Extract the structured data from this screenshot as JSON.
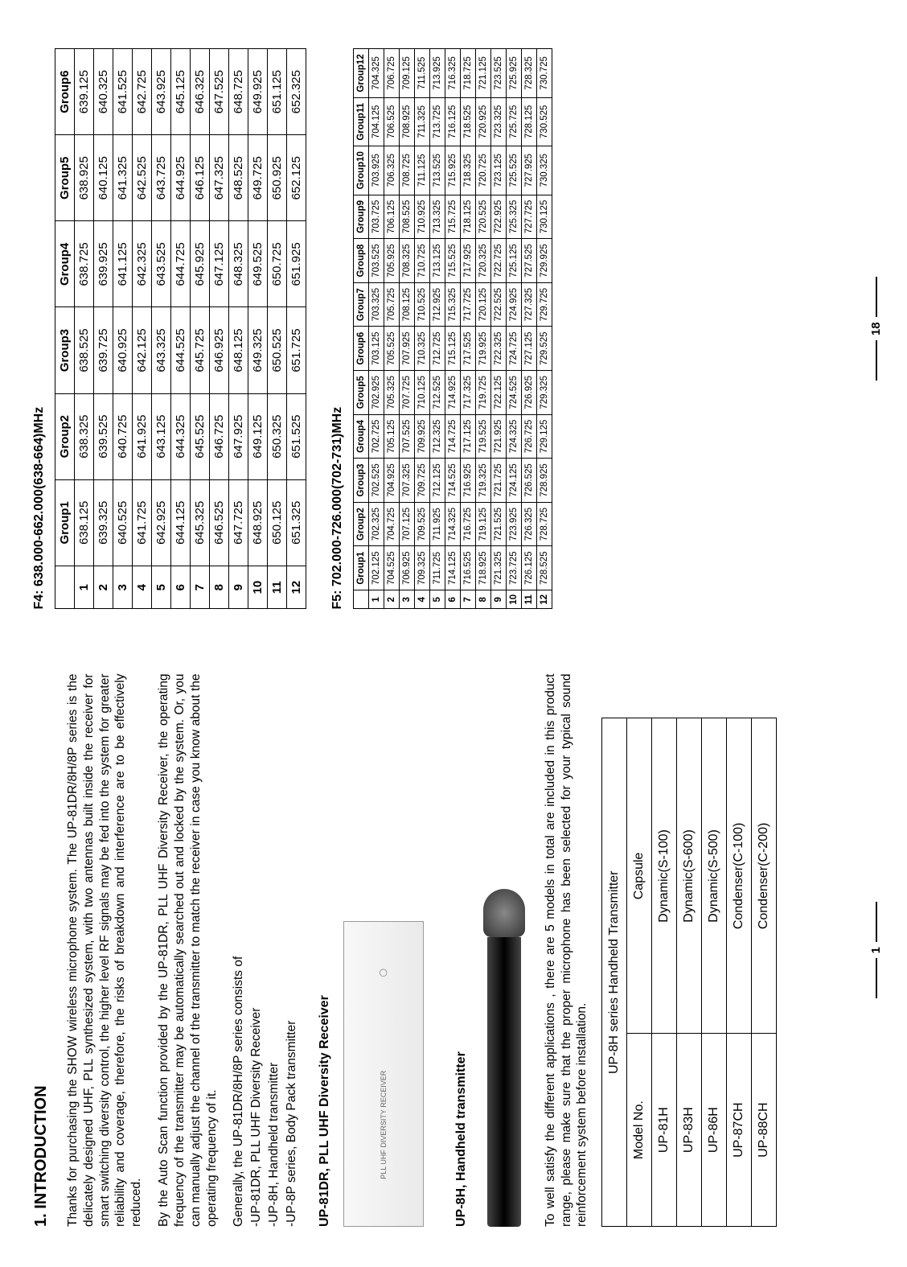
{
  "left": {
    "heading": "1. INTRODUCTION",
    "para1": "Thanks for purchasing the SHOW wireless microphone system. The UP-81DR/8H/8P series is the delicately designed UHF, PLL synthesized system, with two antennas built inside the receiver for smart switching diversity control, the higher level RF signals may be fed into the system for greater reliability and coverage, therefore, the risks of breakdown and interference are to be effectively reduced.",
    "para2": "By the Auto Scan function provided by the UP-81DR, PLL UHF Diversity Receiver, the operating frequency of the transmitter may be automatically searched out and locked by the system. Or, you can manually adjust the channel of the transmitter to match the receiver in case you know about the operating frequency of it.",
    "para3": "Generally, the UP-81DR/8H/8P series consists of",
    "li1": "-UP-81DR, PLL UHF Diversity Receiver",
    "li2": "-UP-8H, Handheld transmitter",
    "li3": "-UP-8P series, Body Pack transmitter",
    "sub1": "UP-81DR, PLL UHF Diversity Receiver",
    "dev_label": "PLL UHF DIVERSITY RECEIVER",
    "sub2": "UP-8H, Handheld transmitter",
    "para4": "To well satisfy the different applications , there are 5 models in total are included in this product range, please make sure that the proper microphone has been selected for your typical sound reinforcement system before installation.",
    "models_header1": "UP-8H series Handheld Transmitter",
    "models_cols": [
      "Model No.",
      "Capsule"
    ],
    "models": [
      [
        "UP-81H",
        "Dynamic(S-100)"
      ],
      [
        "UP-83H",
        "Dynamic(S-600)"
      ],
      [
        "UP-86H",
        "Dynamic(S-500)"
      ],
      [
        "UP-87CH",
        "Condenser(C-100)"
      ],
      [
        "UP-88CH",
        "Condenser(C-200)"
      ]
    ],
    "page_num": "1"
  },
  "right": {
    "f4_title": "F4: 638.000-662.000(638-664)MHz",
    "f4_groups": [
      "Group1",
      "Group2",
      "Group3",
      "Group4",
      "Group5",
      "Group6"
    ],
    "f4_rows": [
      [
        "1",
        "638.125",
        "638.325",
        "638.525",
        "638.725",
        "638.925",
        "639.125"
      ],
      [
        "2",
        "639.325",
        "639.525",
        "639.725",
        "639.925",
        "640.125",
        "640.325"
      ],
      [
        "3",
        "640.525",
        "640.725",
        "640.925",
        "641.125",
        "641.325",
        "641.525"
      ],
      [
        "4",
        "641.725",
        "641.925",
        "642.125",
        "642.325",
        "642.525",
        "642.725"
      ],
      [
        "5",
        "642.925",
        "643.125",
        "643.325",
        "643.525",
        "643.725",
        "643.925"
      ],
      [
        "6",
        "644.125",
        "644.325",
        "644.525",
        "644.725",
        "644.925",
        "645.125"
      ],
      [
        "7",
        "645.325",
        "645.525",
        "645.725",
        "645.925",
        "646.125",
        "646.325"
      ],
      [
        "8",
        "646.525",
        "646.725",
        "646.925",
        "647.125",
        "647.325",
        "647.525"
      ],
      [
        "9",
        "647.725",
        "647.925",
        "648.125",
        "648.325",
        "648.525",
        "648.725"
      ],
      [
        "10",
        "648.925",
        "649.125",
        "649.325",
        "649.525",
        "649.725",
        "649.925"
      ],
      [
        "11",
        "650.125",
        "650.325",
        "650.525",
        "650.725",
        "650.925",
        "651.125"
      ],
      [
        "12",
        "651.325",
        "651.525",
        "651.725",
        "651.925",
        "652.125",
        "652.325"
      ]
    ],
    "f5_title": "F5: 702.000-726.000(702-731)MHz",
    "f5_groups": [
      "Group1",
      "Group2",
      "Group3",
      "Group4",
      "Group5",
      "Group6",
      "Group7",
      "Group8",
      "Group9",
      "Group10",
      "Group11",
      "Group12"
    ],
    "f5_rows": [
      [
        "1",
        "702.125",
        "702.325",
        "702.525",
        "702.725",
        "702.925",
        "703.125",
        "703.325",
        "703.525",
        "703.725",
        "703.925",
        "704.125",
        "704.325"
      ],
      [
        "2",
        "704.525",
        "704.725",
        "704.925",
        "705.125",
        "705.325",
        "705.525",
        "705.725",
        "705.925",
        "706.125",
        "706.325",
        "706.525",
        "706.725"
      ],
      [
        "3",
        "706.925",
        "707.125",
        "707.325",
        "707.525",
        "707.725",
        "707.925",
        "708.125",
        "708.325",
        "708.525",
        "708.725",
        "708.925",
        "709.125"
      ],
      [
        "4",
        "709.325",
        "709.525",
        "709.725",
        "709.925",
        "710.125",
        "710.325",
        "710.525",
        "710.725",
        "710.925",
        "711.125",
        "711.325",
        "711.525"
      ],
      [
        "5",
        "711.725",
        "711.925",
        "712.125",
        "712.325",
        "712.525",
        "712.725",
        "712.925",
        "713.125",
        "713.325",
        "713.525",
        "713.725",
        "713.925"
      ],
      [
        "6",
        "714.125",
        "714.325",
        "714.525",
        "714.725",
        "714.925",
        "715.125",
        "715.325",
        "715.525",
        "715.725",
        "715.925",
        "716.125",
        "716.325"
      ],
      [
        "7",
        "716.525",
        "716.725",
        "716.925",
        "717.125",
        "717.325",
        "717.525",
        "717.725",
        "717.925",
        "718.125",
        "718.325",
        "718.525",
        "718.725"
      ],
      [
        "8",
        "718.925",
        "719.125",
        "719.325",
        "719.525",
        "719.725",
        "719.925",
        "720.125",
        "720.325",
        "720.525",
        "720.725",
        "720.925",
        "721.125"
      ],
      [
        "9",
        "721.325",
        "721.525",
        "721.725",
        "721.925",
        "722.125",
        "722.325",
        "722.525",
        "722.725",
        "722.925",
        "723.125",
        "723.325",
        "723.525"
      ],
      [
        "10",
        "723.725",
        "723.925",
        "724.125",
        "724.325",
        "724.525",
        "724.725",
        "724.925",
        "725.125",
        "725.325",
        "725.525",
        "725.725",
        "725.925"
      ],
      [
        "11",
        "726.125",
        "726.325",
        "726.525",
        "726.725",
        "726.925",
        "727.125",
        "727.325",
        "727.525",
        "727.725",
        "727.925",
        "728.125",
        "728.325"
      ],
      [
        "12",
        "728.525",
        "728.725",
        "728.925",
        "729.125",
        "729.325",
        "729.525",
        "729.725",
        "729.925",
        "730.125",
        "730.325",
        "730.525",
        "730.725"
      ]
    ],
    "page_num": "18"
  }
}
